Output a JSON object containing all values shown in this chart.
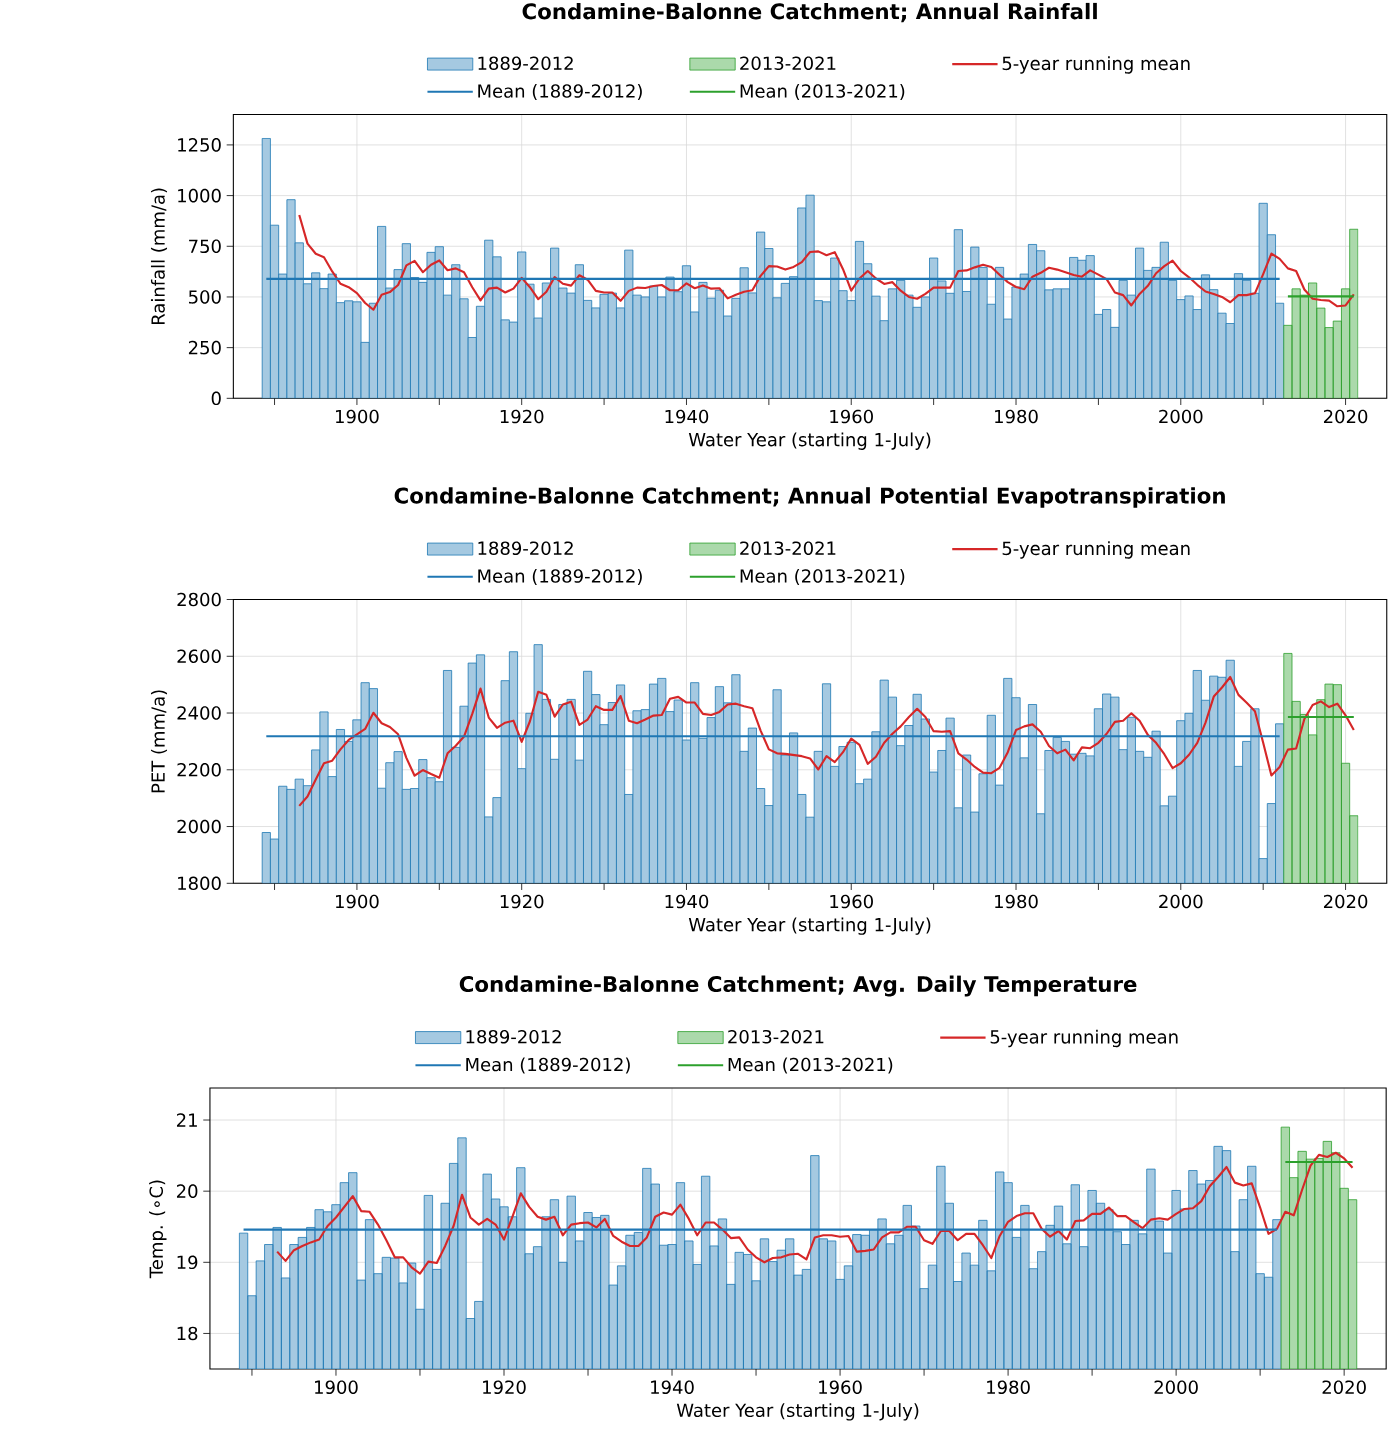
{
  "chart_data": [
    {
      "type": "bar",
      "title": "Condamine-Balonne Catchment; Annual Rainfall",
      "xlabel": "Water Year (starting 1-July)",
      "ylabel": "Rainfall (mm/a)",
      "xlim": [
        1885,
        2025
      ],
      "xticks": [
        {
          "value": 1890,
          "label": null
        },
        1900,
        {
          "value": 1910,
          "label": null
        },
        1920,
        {
          "value": 1930,
          "label": null
        },
        1940,
        {
          "value": 1950,
          "label": null
        },
        1960,
        {
          "value": 1970,
          "label": null
        },
        1980,
        {
          "value": 1990,
          "label": null
        },
        2000,
        {
          "value": 2010,
          "label": null
        },
        2020
      ],
      "ylim": [
        0,
        1400
      ],
      "yticks": [
        0,
        250,
        500,
        750,
        1000,
        1250
      ],
      "grid": true,
      "legend": "top",
      "x": [
        1889,
        1890,
        1891,
        1892,
        1893,
        1894,
        1895,
        1896,
        1897,
        1898,
        1899,
        1900,
        1901,
        1902,
        1903,
        1904,
        1905,
        1906,
        1907,
        1908,
        1909,
        1910,
        1911,
        1912,
        1913,
        1914,
        1915,
        1916,
        1917,
        1918,
        1919,
        1920,
        1921,
        1922,
        1923,
        1924,
        1925,
        1926,
        1927,
        1928,
        1929,
        1930,
        1931,
        1932,
        1933,
        1934,
        1935,
        1936,
        1937,
        1938,
        1939,
        1940,
        1941,
        1942,
        1943,
        1944,
        1945,
        1946,
        1947,
        1948,
        1949,
        1950,
        1951,
        1952,
        1953,
        1954,
        1955,
        1956,
        1957,
        1958,
        1959,
        1960,
        1961,
        1962,
        1963,
        1964,
        1965,
        1966,
        1967,
        1968,
        1969,
        1970,
        1971,
        1972,
        1973,
        1974,
        1975,
        1976,
        1977,
        1978,
        1979,
        1980,
        1981,
        1982,
        1983,
        1984,
        1985,
        1986,
        1987,
        1988,
        1989,
        1990,
        1991,
        1992,
        1993,
        1994,
        1995,
        1996,
        1997,
        1998,
        1999,
        2000,
        2001,
        2002,
        2003,
        2004,
        2005,
        2006,
        2007,
        2008,
        2009,
        2010,
        2011,
        2012,
        2013,
        2014,
        2015,
        2016,
        2017,
        2018,
        2019,
        2020,
        2021
      ],
      "series": [
        {
          "name": "1889-2012",
          "type": "bar",
          "color": "#a5c9e1",
          "values": [
            1282,
            854,
            613,
            980,
            767,
            565,
            619,
            541,
            613,
            472,
            481,
            476,
            276,
            469,
            848,
            544,
            635,
            763,
            596,
            572,
            720,
            748,
            509,
            659,
            491,
            300,
            454,
            780,
            698,
            387,
            376,
            722,
            563,
            396,
            569,
            741,
            544,
            519,
            659,
            483,
            446,
            513,
            519,
            446,
            731,
            509,
            500,
            554,
            500,
            598,
            526,
            654,
            426,
            572,
            494,
            533,
            406,
            493,
            644,
            520,
            820,
            739,
            496,
            567,
            600,
            939,
            1002,
            482,
            476,
            692,
            531,
            482,
            774,
            664,
            504,
            383,
            540,
            582,
            509,
            449,
            500,
            692,
            579,
            518,
            832,
            527,
            746,
            646,
            464,
            646,
            391,
            549,
            613,
            759,
            728,
            535,
            540,
            540,
            695,
            681,
            704,
            414,
            438,
            350,
            582,
            509,
            741,
            631,
            646,
            770,
            582,
            487,
            505,
            438,
            609,
            536,
            420,
            369,
            615,
            582,
            518,
            962,
            807,
            469,
            null,
            null,
            null,
            null,
            null,
            null,
            null,
            null,
            null
          ]
        },
        {
          "name": "2013-2021",
          "type": "bar",
          "color": "#abd9ab",
          "x": [
            2013,
            2014,
            2015,
            2016,
            2017,
            2018,
            2019,
            2020,
            2021
          ],
          "values": [
            360,
            540,
            509,
            569,
            445,
            349,
            381,
            540,
            834
          ]
        },
        {
          "name": "5-year running mean",
          "type": "line",
          "color": "#d62728",
          "values": [
            null,
            null,
            null,
            null,
            904,
            763,
            713,
            696,
            626,
            565,
            548,
            519,
            470,
            437,
            511,
            524,
            559,
            656,
            678,
            622,
            659,
            680,
            632,
            641,
            622,
            548,
            483,
            541,
            546,
            522,
            541,
            594,
            548,
            489,
            526,
            598,
            565,
            556,
            607,
            585,
            530,
            522,
            522,
            481,
            530,
            546,
            544,
            554,
            559,
            533,
            533,
            567,
            543,
            557,
            541,
            543,
            493,
            511,
            526,
            533,
            604,
            652,
            650,
            635,
            648,
            672,
            722,
            725,
            706,
            721,
            637,
            531,
            591,
            628,
            591,
            564,
            573,
            531,
            500,
            491,
            515,
            546,
            546,
            546,
            628,
            631,
            646,
            659,
            648,
            610,
            573,
            549,
            538,
            600,
            619,
            644,
            635,
            622,
            608,
            600,
            631,
            610,
            588,
            522,
            509,
            458,
            515,
            555,
            617,
            652,
            679,
            628,
            597,
            560,
            527,
            515,
            500,
            474,
            509,
            509,
            518,
            613,
            714,
            688,
            641,
            628,
            537,
            491,
            485,
            482,
            454,
            458,
            513
          ]
        },
        {
          "name": "Mean (1889-2012)",
          "type": "line",
          "color": "#1f77b4",
          "x": [
            1889,
            2012
          ],
          "values": [
            589,
            589
          ]
        },
        {
          "name": "Mean (2013-2021)",
          "type": "line",
          "color": "#2ca02c",
          "x": [
            2013,
            2021
          ],
          "values": [
            503,
            503
          ]
        }
      ]
    },
    {
      "type": "bar",
      "title": "Condamine-Balonne Catchment; Annual Potential Evapotranspiration",
      "xlabel": "Water Year (starting 1-July)",
      "ylabel": "PET (mm/a)",
      "xlim": [
        1885,
        2025
      ],
      "xticks": [
        {
          "value": 1890,
          "label": null
        },
        1900,
        {
          "value": 1910,
          "label": null
        },
        1920,
        {
          "value": 1930,
          "label": null
        },
        1940,
        {
          "value": 1950,
          "label": null
        },
        1960,
        {
          "value": 1970,
          "label": null
        },
        1980,
        {
          "value": 1990,
          "label": null
        },
        2000,
        {
          "value": 2010,
          "label": null
        },
        2020
      ],
      "ylim": [
        1800,
        2800
      ],
      "yticks": [
        1800,
        2000,
        2200,
        2400,
        2600,
        2800
      ],
      "grid": true,
      "legend": "top",
      "x": [
        1889,
        1890,
        1891,
        1892,
        1893,
        1894,
        1895,
        1896,
        1897,
        1898,
        1899,
        1900,
        1901,
        1902,
        1903,
        1904,
        1905,
        1906,
        1907,
        1908,
        1909,
        1910,
        1911,
        1912,
        1913,
        1914,
        1915,
        1916,
        1917,
        1918,
        1919,
        1920,
        1921,
        1922,
        1923,
        1924,
        1925,
        1926,
        1927,
        1928,
        1929,
        1930,
        1931,
        1932,
        1933,
        1934,
        1935,
        1936,
        1937,
        1938,
        1939,
        1940,
        1941,
        1942,
        1943,
        1944,
        1945,
        1946,
        1947,
        1948,
        1949,
        1950,
        1951,
        1952,
        1953,
        1954,
        1955,
        1956,
        1957,
        1958,
        1959,
        1960,
        1961,
        1962,
        1963,
        1964,
        1965,
        1966,
        1967,
        1968,
        1969,
        1970,
        1971,
        1972,
        1973,
        1974,
        1975,
        1976,
        1977,
        1978,
        1979,
        1980,
        1981,
        1982,
        1983,
        1984,
        1985,
        1986,
        1987,
        1988,
        1989,
        1990,
        1991,
        1992,
        1993,
        1994,
        1995,
        1996,
        1997,
        1998,
        1999,
        2000,
        2001,
        2002,
        2003,
        2004,
        2005,
        2006,
        2007,
        2008,
        2009,
        2010,
        2011,
        2012,
        2013,
        2014,
        2015,
        2016,
        2017,
        2018,
        2019,
        2020,
        2021
      ],
      "series": [
        {
          "name": "1889-2012",
          "type": "bar",
          "color": "#a5c9e1",
          "values": [
            1979,
            1956,
            2142,
            2131,
            2167,
            2144,
            2270,
            2404,
            2176,
            2342,
            2300,
            2376,
            2507,
            2486,
            2135,
            2225,
            2264,
            2131,
            2134,
            2236,
            2172,
            2158,
            2550,
            2279,
            2424,
            2576,
            2605,
            2034,
            2102,
            2514,
            2616,
            2204,
            2399,
            2641,
            2448,
            2237,
            2430,
            2448,
            2234,
            2547,
            2465,
            2359,
            2437,
            2499,
            2113,
            2408,
            2412,
            2502,
            2522,
            2405,
            2446,
            2305,
            2507,
            2311,
            2384,
            2493,
            2436,
            2535,
            2265,
            2347,
            2134,
            2074,
            2482,
            2252,
            2330,
            2113,
            2033,
            2265,
            2503,
            2212,
            2282,
            2297,
            2151,
            2167,
            2334,
            2516,
            2456,
            2285,
            2356,
            2466,
            2379,
            2192,
            2268,
            2382,
            2066,
            2252,
            2051,
            2186,
            2392,
            2146,
            2522,
            2454,
            2242,
            2430,
            2045,
            2268,
            2314,
            2300,
            2255,
            2258,
            2249,
            2415,
            2467,
            2456,
            2271,
            2385,
            2265,
            2244,
            2336,
            2073,
            2107,
            2373,
            2399,
            2550,
            2445,
            2530,
            2526,
            2586,
            2212,
            2300,
            2415,
            1887,
            2081,
            2362,
            null,
            null,
            null,
            null,
            null,
            null,
            null,
            null,
            null
          ]
        },
        {
          "name": "2013-2021",
          "type": "bar",
          "color": "#abd9ab",
          "x": [
            2013,
            2014,
            2015,
            2016,
            2017,
            2018,
            2019,
            2020,
            2021
          ],
          "values": [
            2610,
            2441,
            2395,
            2323,
            2447,
            2502,
            2500,
            2223,
            2038
          ]
        },
        {
          "name": "5-year running mean",
          "type": "line",
          "color": "#d62728",
          "values": [
            null,
            null,
            null,
            null,
            2073,
            2106,
            2166,
            2223,
            2232,
            2272,
            2305,
            2325,
            2344,
            2401,
            2364,
            2351,
            2325,
            2242,
            2179,
            2199,
            2185,
            2172,
            2258,
            2285,
            2317,
            2397,
            2486,
            2384,
            2348,
            2366,
            2373,
            2298,
            2371,
            2475,
            2464,
            2387,
            2430,
            2440,
            2358,
            2377,
            2424,
            2411,
            2411,
            2460,
            2373,
            2364,
            2377,
            2391,
            2393,
            2450,
            2457,
            2437,
            2437,
            2397,
            2393,
            2404,
            2430,
            2433,
            2424,
            2417,
            2338,
            2272,
            2258,
            2256,
            2252,
            2248,
            2240,
            2201,
            2248,
            2227,
            2262,
            2310,
            2288,
            2221,
            2246,
            2295,
            2327,
            2353,
            2386,
            2415,
            2386,
            2336,
            2334,
            2336,
            2258,
            2236,
            2210,
            2190,
            2188,
            2207,
            2262,
            2340,
            2353,
            2360,
            2334,
            2284,
            2258,
            2271,
            2233,
            2279,
            2276,
            2295,
            2327,
            2369,
            2373,
            2399,
            2373,
            2323,
            2295,
            2255,
            2206,
            2223,
            2253,
            2295,
            2366,
            2458,
            2490,
            2527,
            2464,
            2436,
            2406,
            2295,
            2180,
            2210,
            2271,
            2275,
            2379,
            2428,
            2441,
            2421,
            2433,
            2392,
            2340
          ]
        },
        {
          "name": "Mean (1889-2012)",
          "type": "line",
          "color": "#1f77b4",
          "x": [
            1889,
            2012
          ],
          "values": [
            2318,
            2318
          ]
        },
        {
          "name": "Mean (2013-2021)",
          "type": "line",
          "color": "#2ca02c",
          "x": [
            2013,
            2021
          ],
          "values": [
            2386,
            2386
          ]
        }
      ]
    },
    {
      "type": "bar",
      "title": "Condamine-Balonne Catchment; Avg. Daily Temperature",
      "xlabel": "Water Year (starting 1-July)",
      "ylabel": "Temp. (∘C)",
      "xlim": [
        1885,
        2025
      ],
      "xticks": [
        {
          "value": 1890,
          "label": null
        },
        1900,
        {
          "value": 1910,
          "label": null
        },
        1920,
        {
          "value": 1930,
          "label": null
        },
        1940,
        {
          "value": 1950,
          "label": null
        },
        1960,
        {
          "value": 1970,
          "label": null
        },
        1980,
        {
          "value": 1990,
          "label": null
        },
        2000,
        {
          "value": 2010,
          "label": null
        },
        2020
      ],
      "ylim": [
        17.5,
        21.45
      ],
      "yticks": [
        18,
        19,
        20,
        21
      ],
      "grid": true,
      "legend": "top",
      "x": [
        1889,
        1890,
        1891,
        1892,
        1893,
        1894,
        1895,
        1896,
        1897,
        1898,
        1899,
        1900,
        1901,
        1902,
        1903,
        1904,
        1905,
        1906,
        1907,
        1908,
        1909,
        1910,
        1911,
        1912,
        1913,
        1914,
        1915,
        1916,
        1917,
        1918,
        1919,
        1920,
        1921,
        1922,
        1923,
        1924,
        1925,
        1926,
        1927,
        1928,
        1929,
        1930,
        1931,
        1932,
        1933,
        1934,
        1935,
        1936,
        1937,
        1938,
        1939,
        1940,
        1941,
        1942,
        1943,
        1944,
        1945,
        1946,
        1947,
        1948,
        1949,
        1950,
        1951,
        1952,
        1953,
        1954,
        1955,
        1956,
        1957,
        1958,
        1959,
        1960,
        1961,
        1962,
        1963,
        1964,
        1965,
        1966,
        1967,
        1968,
        1969,
        1970,
        1971,
        1972,
        1973,
        1974,
        1975,
        1976,
        1977,
        1978,
        1979,
        1980,
        1981,
        1982,
        1983,
        1984,
        1985,
        1986,
        1987,
        1988,
        1989,
        1990,
        1991,
        1992,
        1993,
        1994,
        1995,
        1996,
        1997,
        1998,
        1999,
        2000,
        2001,
        2002,
        2003,
        2004,
        2005,
        2006,
        2007,
        2008,
        2009,
        2010,
        2011,
        2012,
        2013,
        2014,
        2015,
        2016,
        2017,
        2018,
        2019,
        2020,
        2021
      ],
      "series": [
        {
          "name": "1889-2012",
          "type": "bar",
          "color": "#a5c9e1",
          "values": [
            19.41,
            18.53,
            19.02,
            19.25,
            19.49,
            18.78,
            19.25,
            19.35,
            19.49,
            19.74,
            19.71,
            19.81,
            20.12,
            20.26,
            18.75,
            19.6,
            18.84,
            19.07,
            19.06,
            18.71,
            18.99,
            18.34,
            19.94,
            18.9,
            19.83,
            20.39,
            20.75,
            18.21,
            18.45,
            20.24,
            19.89,
            19.78,
            19.64,
            20.33,
            19.12,
            19.22,
            19.64,
            19.88,
            19.0,
            19.93,
            19.3,
            19.7,
            19.63,
            19.66,
            18.68,
            18.95,
            19.38,
            19.42,
            20.32,
            20.1,
            19.24,
            19.25,
            20.12,
            19.3,
            18.97,
            20.21,
            19.23,
            19.61,
            18.69,
            19.14,
            19.11,
            18.74,
            19.33,
            19.01,
            19.17,
            19.33,
            18.82,
            18.9,
            20.5,
            19.33,
            19.3,
            18.76,
            18.95,
            19.39,
            19.38,
            19.46,
            19.61,
            19.26,
            19.38,
            19.8,
            19.51,
            18.63,
            18.96,
            20.35,
            19.83,
            18.73,
            19.13,
            18.96,
            19.59,
            18.88,
            20.27,
            20.12,
            19.35,
            19.8,
            18.91,
            19.15,
            19.52,
            19.79,
            19.26,
            20.09,
            19.22,
            20.01,
            19.83,
            19.74,
            19.43,
            19.25,
            19.59,
            19.4,
            20.31,
            19.58,
            19.13,
            20.01,
            19.75,
            20.29,
            20.1,
            20.15,
            20.63,
            20.57,
            19.15,
            19.88,
            20.35,
            18.84,
            18.79,
            19.6,
            null,
            null,
            null,
            null,
            null,
            null,
            null,
            null,
            null
          ]
        },
        {
          "name": "2013-2021",
          "type": "bar",
          "color": "#abd9ab",
          "x": [
            2013,
            2014,
            2015,
            2016,
            2017,
            2018,
            2019,
            2020,
            2021
          ],
          "values": [
            20.9,
            20.19,
            20.56,
            20.45,
            20.46,
            20.7,
            20.54,
            20.04,
            19.88
          ]
        },
        {
          "name": "5-year running mean",
          "type": "line",
          "color": "#d62728",
          "values": [
            null,
            null,
            null,
            null,
            19.15,
            19.02,
            19.17,
            19.23,
            19.28,
            19.32,
            19.51,
            19.63,
            19.78,
            19.93,
            19.72,
            19.71,
            19.53,
            19.31,
            19.07,
            19.07,
            18.93,
            18.84,
            19.01,
            18.99,
            19.23,
            19.51,
            19.95,
            19.63,
            19.53,
            19.61,
            19.53,
            19.32,
            19.64,
            19.97,
            19.78,
            19.64,
            19.6,
            19.64,
            19.38,
            19.53,
            19.55,
            19.56,
            19.49,
            19.61,
            19.37,
            19.29,
            19.23,
            19.23,
            19.35,
            19.64,
            19.7,
            19.67,
            19.81,
            19.61,
            19.38,
            19.56,
            19.56,
            19.46,
            19.34,
            19.35,
            19.18,
            19.07,
            19.0,
            19.06,
            19.07,
            19.11,
            19.12,
            19.04,
            19.35,
            19.38,
            19.38,
            19.36,
            19.37,
            19.15,
            19.16,
            19.18,
            19.35,
            19.42,
            19.42,
            19.5,
            19.5,
            19.31,
            19.26,
            19.44,
            19.44,
            19.31,
            19.4,
            19.4,
            19.24,
            19.06,
            19.37,
            19.57,
            19.65,
            19.69,
            19.69,
            19.47,
            19.36,
            19.44,
            19.32,
            19.58,
            19.59,
            19.68,
            19.68,
            19.77,
            19.65,
            19.65,
            19.56,
            19.48,
            19.6,
            19.62,
            19.6,
            19.68,
            19.75,
            19.76,
            19.86,
            20.07,
            20.2,
            20.34,
            20.12,
            20.08,
            20.11,
            19.77,
            19.4,
            19.47,
            19.71,
            19.66,
            20.02,
            20.36,
            20.51,
            20.48,
            20.54,
            20.46,
            20.33
          ]
        },
        {
          "name": "Mean (1889-2012)",
          "type": "line",
          "color": "#1f77b4",
          "x": [
            1889,
            2012
          ],
          "values": [
            19.46,
            19.46
          ]
        },
        {
          "name": "Mean (2013-2021)",
          "type": "line",
          "color": "#2ca02c",
          "x": [
            2013,
            2021
          ],
          "values": [
            20.41,
            20.41
          ]
        }
      ]
    }
  ]
}
